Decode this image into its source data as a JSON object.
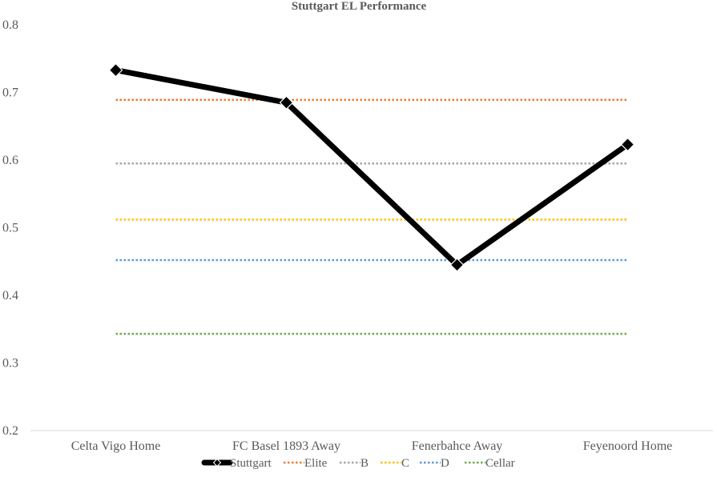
{
  "chart_data": {
    "type": "line",
    "title": "Stuttgart EL Performance",
    "xlabel": "",
    "ylabel": "",
    "categories": [
      "Celta Vigo Home",
      "FC Basel 1893 Away",
      "Fenerbahce Away",
      "Feyenoord Home"
    ],
    "ylim": [
      0.2,
      0.8
    ],
    "yticks": [
      "0.2",
      "0.3",
      "0.4",
      "0.5",
      "0.6",
      "0.7",
      "0.8"
    ],
    "grid": false,
    "legend_position": "bottom",
    "series": [
      {
        "name": "Stuttgart",
        "values": [
          0.733,
          0.685,
          0.445,
          0.623
        ],
        "color": "#000000",
        "style": "solid",
        "marker": "diamond"
      },
      {
        "name": "Elite",
        "values": [
          0.689,
          0.689,
          0.689,
          0.689
        ],
        "color": "#ED7D31",
        "style": "dotted"
      },
      {
        "name": "B",
        "values": [
          0.595,
          0.595,
          0.595,
          0.595
        ],
        "color": "#A5A5A5",
        "style": "dotted"
      },
      {
        "name": "C",
        "values": [
          0.512,
          0.512,
          0.512,
          0.512
        ],
        "color": "#FFC000",
        "style": "dotted"
      },
      {
        "name": "D",
        "values": [
          0.452,
          0.452,
          0.452,
          0.452
        ],
        "color": "#5B9BD5",
        "style": "dotted"
      },
      {
        "name": "Cellar",
        "values": [
          0.343,
          0.343,
          0.343,
          0.343
        ],
        "color": "#70AD47",
        "style": "dotted"
      }
    ]
  }
}
